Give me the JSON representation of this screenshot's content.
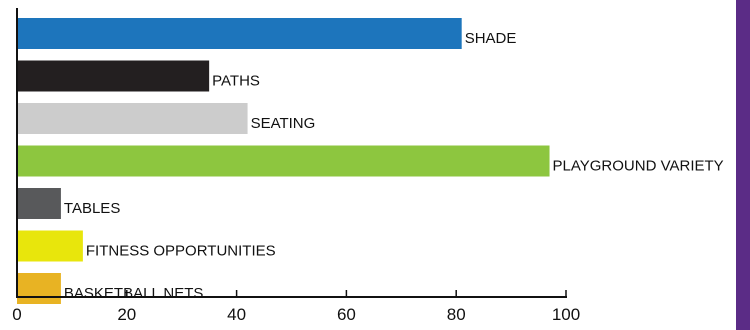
{
  "chart_data": {
    "type": "bar",
    "orientation": "horizontal",
    "title": "",
    "xlabel": "",
    "ylabel": "",
    "xlim": [
      0,
      100
    ],
    "x_ticks": [
      0,
      20,
      40,
      60,
      80,
      100
    ],
    "categories": [
      "SHADE",
      "PATHS",
      "SEATING",
      "PLAYGROUND VARIETY",
      "TABLES",
      "FITNESS OPPORTUNITIES",
      "BASKETBALL NETS"
    ],
    "values": [
      81,
      35,
      42,
      97,
      8,
      12,
      8
    ],
    "colors": [
      "#1d75bc",
      "#231f20",
      "#cccccc",
      "#8dc63f",
      "#58595b",
      "#e8e60c",
      "#e8b323"
    ],
    "grid": false,
    "legend": "none"
  },
  "accent_color": "#5b2c86"
}
